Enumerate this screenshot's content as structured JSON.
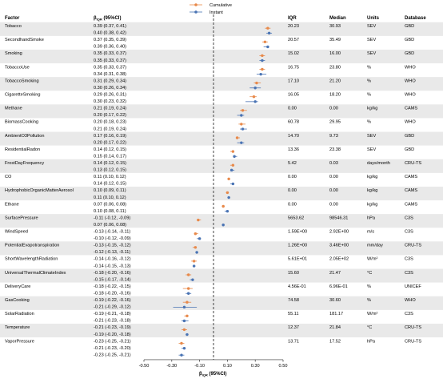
{
  "chart_data": {
    "type": "forest",
    "columns": {
      "factor": "Factor",
      "beta": "β",
      "beta_sub": "IQR",
      "beta_ci": " (95%CI)",
      "iqr": "IQR",
      "median": "Median",
      "units": "Units",
      "database": "Database"
    },
    "legend": [
      "Cumulative",
      "Instant"
    ],
    "legend_position": "top",
    "colors": {
      "Cumulative": "#e8894a",
      "Instant": "#4a74b4",
      "band": "#e9e9e9",
      "zero_line": "#333333"
    },
    "xlim": [
      -0.5,
      0.5
    ],
    "xticks": [
      "-0.50",
      "-0.30",
      "-0.10",
      "0.10",
      "0.30",
      "0.50"
    ],
    "xtick_values": [
      -0.5,
      -0.3,
      -0.1,
      0.1,
      0.3,
      0.5
    ],
    "xlabel": "β",
    "xlabel_sub": "IQR",
    "xlabel_tail": " (95%CI)",
    "reference_line": 0,
    "factors": [
      {
        "name": "Tobacco",
        "iqr": "20.23",
        "median": "30.93",
        "units": "SEV",
        "db": "GBD",
        "cum": {
          "label": "0.39 (0.37, 0.41)",
          "est": 0.39,
          "lo": 0.37,
          "hi": 0.41
        },
        "ins": {
          "label": "0.40 (0.38, 0.42)",
          "est": 0.4,
          "lo": 0.38,
          "hi": 0.42
        }
      },
      {
        "name": "SecondhandSmoke",
        "iqr": "20.57",
        "median": "35.49",
        "units": "SEV",
        "db": "GBD",
        "cum": {
          "label": "0.37 (0.35, 0.39)",
          "est": 0.37,
          "lo": 0.35,
          "hi": 0.39
        },
        "ins": {
          "label": "0.39 (0.36, 0.40)",
          "est": 0.39,
          "lo": 0.36,
          "hi": 0.4
        }
      },
      {
        "name": "Smoking",
        "iqr": "15.02",
        "median": "16.00",
        "units": "SEV",
        "db": "GBD",
        "cum": {
          "label": "0.35 (0.33, 0.37)",
          "est": 0.35,
          "lo": 0.33,
          "hi": 0.37
        },
        "ins": {
          "label": "0.35 (0.33, 0.37)",
          "est": 0.35,
          "lo": 0.33,
          "hi": 0.37
        }
      },
      {
        "name": "TobaccoUse",
        "iqr": "16.75",
        "median": "23.80",
        "units": "%",
        "db": "WHO",
        "cum": {
          "label": "0.35 (0.33, 0.37)",
          "est": 0.35,
          "lo": 0.33,
          "hi": 0.37
        },
        "ins": {
          "label": "0.34 (0.31, 0.38)",
          "est": 0.34,
          "lo": 0.31,
          "hi": 0.38
        }
      },
      {
        "name": "TobaccoSmoking",
        "iqr": "17.10",
        "median": "21.20",
        "units": "%",
        "db": "WHO",
        "cum": {
          "label": "0.31 (0.29, 0.34)",
          "est": 0.31,
          "lo": 0.29,
          "hi": 0.34
        },
        "ins": {
          "label": "0.30 (0.26, 0.34)",
          "est": 0.3,
          "lo": 0.26,
          "hi": 0.34
        }
      },
      {
        "name": "CigaretteSmoking",
        "iqr": "16.05",
        "median": "18.20",
        "units": "%",
        "db": "WHO",
        "cum": {
          "label": "0.29 (0.26, 0.31)",
          "est": 0.29,
          "lo": 0.26,
          "hi": 0.31
        },
        "ins": {
          "label": "0.30 (0.23, 0.32)",
          "est": 0.3,
          "lo": 0.23,
          "hi": 0.32
        }
      },
      {
        "name": "Methane",
        "iqr": "0.00",
        "median": "0.00",
        "units": "kg/kg",
        "db": "CAMS",
        "cum": {
          "label": "0.21 (0.19, 0.24)",
          "est": 0.21,
          "lo": 0.19,
          "hi": 0.24
        },
        "ins": {
          "label": "0.20 (0.17, 0.22)",
          "est": 0.2,
          "lo": 0.17,
          "hi": 0.22
        }
      },
      {
        "name": "BiomassCooking",
        "iqr": "60.78",
        "median": "29.95",
        "units": "%",
        "db": "WHO",
        "cum": {
          "label": "0.20 (0.18, 0.23)",
          "est": 0.2,
          "lo": 0.18,
          "hi": 0.23
        },
        "ins": {
          "label": "0.21 (0.19, 0.24)",
          "est": 0.21,
          "lo": 0.19,
          "hi": 0.24
        }
      },
      {
        "name": "AmbientO3Pollution",
        "iqr": "14.70",
        "median": "9.73",
        "units": "SEV",
        "db": "GBD",
        "cum": {
          "label": "0.17 (0.16, 0.19)",
          "est": 0.17,
          "lo": 0.16,
          "hi": 0.19
        },
        "ins": {
          "label": "0.20 (0.17, 0.22)",
          "est": 0.2,
          "lo": 0.17,
          "hi": 0.22
        }
      },
      {
        "name": "ResidentialRadon",
        "iqr": "13.36",
        "median": "23.38",
        "units": "SEV",
        "db": "GBD",
        "cum": {
          "label": "0.14 (0.12, 0.15)",
          "est": 0.14,
          "lo": 0.12,
          "hi": 0.15
        },
        "ins": {
          "label": "0.15 (0.14, 0.17)",
          "est": 0.15,
          "lo": 0.14,
          "hi": 0.17
        }
      },
      {
        "name": "FrostDayFrequency",
        "iqr": "5.42",
        "median": "0.03",
        "units": "days/month",
        "db": "CRU-TS",
        "cum": {
          "label": "0.14 (0.12, 0.15)",
          "est": 0.14,
          "lo": 0.12,
          "hi": 0.15
        },
        "ins": {
          "label": "0.13 (0.12, 0.15)",
          "est": 0.13,
          "lo": 0.12,
          "hi": 0.15
        }
      },
      {
        "name": "CO",
        "iqr": "0.00",
        "median": "0.00",
        "units": "kg/kg",
        "db": "CAMS",
        "cum": {
          "label": "0.11 (0.10, 0.12)",
          "est": 0.11,
          "lo": 0.1,
          "hi": 0.12
        },
        "ins": {
          "label": "0.14 (0.12, 0.15)",
          "est": 0.14,
          "lo": 0.12,
          "hi": 0.15
        }
      },
      {
        "name": "HydrophobicOrganicMatterAerosol",
        "iqr": "0.00",
        "median": "0.00",
        "units": "kg/kg",
        "db": "CAMS",
        "cum": {
          "label": "0.10 (0.09, 0.11)",
          "est": 0.1,
          "lo": 0.09,
          "hi": 0.11
        },
        "ins": {
          "label": "0.11 (0.10, 0.12)",
          "est": 0.11,
          "lo": 0.1,
          "hi": 0.12
        }
      },
      {
        "name": "Ethane",
        "iqr": "0.00",
        "median": "0.00",
        "units": "kg/kg",
        "db": "CAMS",
        "cum": {
          "label": "0.07 (0.06, 0.08)",
          "est": 0.07,
          "lo": 0.06,
          "hi": 0.08
        },
        "ins": {
          "label": "0.10 (0.08, 0.11)",
          "est": 0.1,
          "lo": 0.08,
          "hi": 0.11
        }
      },
      {
        "name": "SurfacePressure",
        "iqr": "5653.62",
        "median": "98546.31",
        "units": "hPa",
        "db": "C3S",
        "cum": {
          "label": "-0.11 (-0.12, -0.09)",
          "est": -0.11,
          "lo": -0.12,
          "hi": -0.09
        },
        "ins": {
          "label": "0.07 (0.06, 0.08)",
          "est": 0.07,
          "lo": 0.06,
          "hi": 0.08
        }
      },
      {
        "name": "WindSpeed",
        "iqr": "1.59E+00",
        "median": "2.92E+00",
        "units": "m/s",
        "db": "C3S",
        "cum": {
          "label": "-0.13 (-0.14, -0.11)",
          "est": -0.13,
          "lo": -0.14,
          "hi": -0.11
        },
        "ins": {
          "label": "-0.10 (-0.12, -0.09)",
          "est": -0.1,
          "lo": -0.12,
          "hi": -0.09
        }
      },
      {
        "name": "PotentialEvapotranspiration",
        "iqr": "1.26E+00",
        "median": "3.46E+00",
        "units": "mm/day",
        "db": "CRU-TS",
        "cum": {
          "label": "-0.13 (-0.15, -0.12)",
          "est": -0.13,
          "lo": -0.15,
          "hi": -0.12
        },
        "ins": {
          "label": "-0.12 (-0.13, -0.11)",
          "est": -0.12,
          "lo": -0.13,
          "hi": -0.11
        }
      },
      {
        "name": "ShortWavelengthRadiation",
        "iqr": "5.61E+01",
        "median": "2.05E+02",
        "units": "W/m²",
        "db": "C3S",
        "cum": {
          "label": "-0.14 (-0.16, -0.12)",
          "est": -0.14,
          "lo": -0.16,
          "hi": -0.12
        },
        "ins": {
          "label": "-0.14 (-0.15, -0.13)",
          "est": -0.14,
          "lo": -0.15,
          "hi": -0.13
        }
      },
      {
        "name": "UniversalThermalClimateIndex",
        "iqr": "15.60",
        "median": "21.47",
        "units": "°C",
        "db": "C3S",
        "cum": {
          "label": "-0.18 (-0.20, -0.16)",
          "est": -0.18,
          "lo": -0.2,
          "hi": -0.16
        },
        "ins": {
          "label": "-0.15 (-0.17, -0.14)",
          "est": -0.15,
          "lo": -0.17,
          "hi": -0.14
        }
      },
      {
        "name": "DeliveryCare",
        "iqr": "4.56E-01",
        "median": "6.96E-01",
        "units": "%",
        "db": "UNICEF",
        "cum": {
          "label": "-0.18 (-0.22, -0.15)",
          "est": -0.18,
          "lo": -0.22,
          "hi": -0.15
        },
        "ins": {
          "label": "-0.18 (-0.20, -0.16)",
          "est": -0.18,
          "lo": -0.2,
          "hi": -0.16
        }
      },
      {
        "name": "GasCooking",
        "iqr": "74.58",
        "median": "30.60",
        "units": "%",
        "db": "WHO",
        "cum": {
          "label": "-0.19 (-0.22, -0.16)",
          "est": -0.19,
          "lo": -0.22,
          "hi": -0.16
        },
        "ins": {
          "label": "-0.21 (-0.29, -0.12)",
          "est": -0.21,
          "lo": -0.29,
          "hi": -0.12
        }
      },
      {
        "name": "SolarRadiation",
        "iqr": "55.11",
        "median": "181.17",
        "units": "W/m²",
        "db": "C3S",
        "cum": {
          "label": "-0.19 (-0.21, -0.18)",
          "est": -0.19,
          "lo": -0.21,
          "hi": -0.18
        },
        "ins": {
          "label": "-0.21 (-0.23, -0.18)",
          "est": -0.21,
          "lo": -0.23,
          "hi": -0.18
        }
      },
      {
        "name": "Temperature",
        "iqr": "12.37",
        "median": "21.84",
        "units": "°C",
        "db": "CRU-TS",
        "cum": {
          "label": "-0.21 (-0.23, -0.19)",
          "est": -0.21,
          "lo": -0.23,
          "hi": -0.19
        },
        "ins": {
          "label": "-0.19 (-0.20, -0.18)",
          "est": -0.19,
          "lo": -0.2,
          "hi": -0.18
        }
      },
      {
        "name": "VaporPressure",
        "iqr": "13.71",
        "median": "17.52",
        "units": "hPa",
        "db": "CRU-TS",
        "cum": {
          "label": "-0.23 (-0.25, -0.21)",
          "est": -0.23,
          "lo": -0.25,
          "hi": -0.21
        },
        "ins": {
          "label": "-0.21 (-0.23, -0.20)",
          "est": -0.21,
          "lo": -0.23,
          "hi": -0.2
        }
      }
    ],
    "extra_instant_row": {
      "label": "-0.23 (-0.25, -0.21)",
      "est": -0.23,
      "lo": -0.25,
      "hi": -0.21
    }
  }
}
